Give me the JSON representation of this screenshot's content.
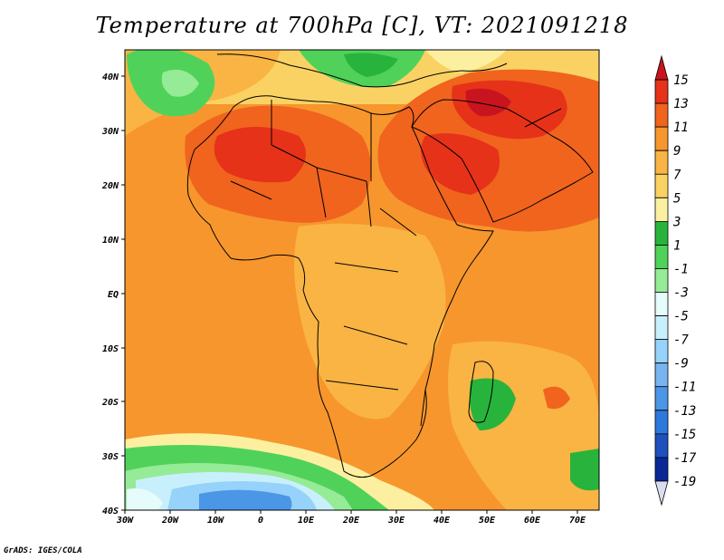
{
  "title": "Temperature at 700hPa [C], VT: 2021091218",
  "credit": "GrADS: IGES/COLA",
  "map": {
    "lon_ticks": [
      "30W",
      "20W",
      "10W",
      "0",
      "10E",
      "20E",
      "30E",
      "40E",
      "50E",
      "60E",
      "70E"
    ],
    "lat_ticks": [
      "40N",
      "30N",
      "20N",
      "10N",
      "EQ",
      "10S",
      "20S",
      "30S",
      "40S"
    ]
  },
  "colorbar": {
    "labels": [
      "15",
      "13",
      "11",
      "9",
      "7",
      "5",
      "3",
      "1",
      "-1",
      "-3",
      "-5",
      "-7",
      "-9",
      "-11",
      "-13",
      "-15",
      "-17",
      "-19"
    ],
    "colors": [
      "#c8141e",
      "#e63219",
      "#f0641e",
      "#f7962d",
      "#f9b444",
      "#fad264",
      "#fcf0a0",
      "#28b43c",
      "#50d25a",
      "#96eb96",
      "#e6fcfa",
      "#c8f0fc",
      "#96d2fa",
      "#78b4f0",
      "#4b96e6",
      "#2d78dc",
      "#1e50be",
      "#0a2896",
      "#dcdcf0"
    ]
  }
}
